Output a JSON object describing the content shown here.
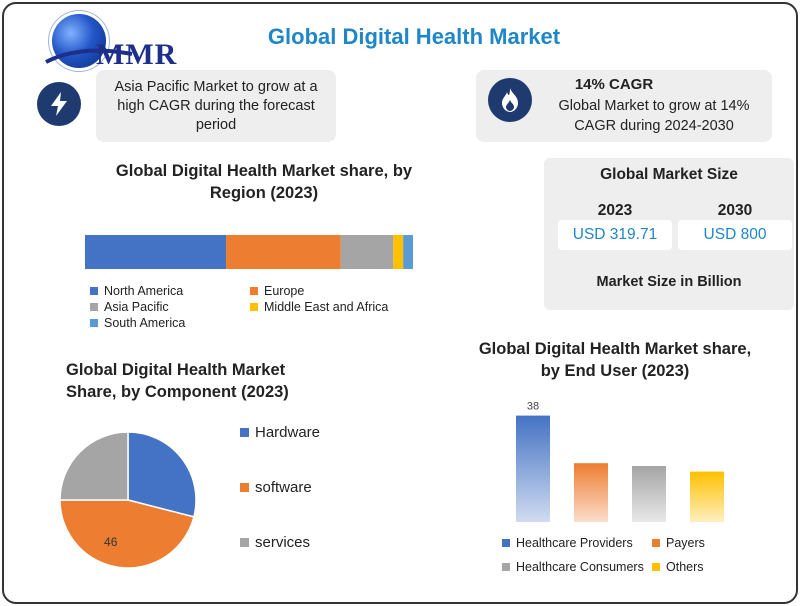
{
  "brand": {
    "logo_text": "MMR"
  },
  "title": "Global Digital Health Market",
  "callout_left": {
    "icon": "lightning-bolt-icon",
    "text": "Asia Pacific Market to grow at a high CAGR during the forecast period"
  },
  "callout_right": {
    "icon": "flame-icon",
    "title": "14% CAGR",
    "text": "Global Market to grow at 14% CAGR during 2024-2030"
  },
  "market_size": {
    "title": "Global Market Size",
    "year_a": "2023",
    "value_a": "USD 319.71",
    "year_b": "2030",
    "value_b": "USD 800",
    "note": "Market Size in Billion"
  },
  "colors": {
    "accent": "#1f86c8",
    "blue": "#4472c4",
    "orange": "#ed7d31",
    "gray": "#a5a5a5",
    "yellow": "#ffc000",
    "lightblue": "#5b9bd5"
  },
  "chart_data": [
    {
      "type": "bar",
      "orientation": "horizontal-stacked",
      "title": "Global Digital Health Market share, by Region (2023)",
      "series": [
        {
          "name": "North America",
          "values": [
            43
          ],
          "color": "#4472c4"
        },
        {
          "name": "Europe",
          "values": [
            35
          ],
          "color": "#ed7d31"
        },
        {
          "name": "Asia Pacific",
          "values": [
            16
          ],
          "color": "#a5a5a5"
        },
        {
          "name": "Middle East and Africa",
          "values": [
            3
          ],
          "color": "#ffc000"
        },
        {
          "name": "South America",
          "values": [
            3
          ],
          "color": "#5b9bd5"
        }
      ],
      "legend": "bottom"
    },
    {
      "type": "pie",
      "title": "Global Digital Health Market Share, by Component (2023)",
      "categories": [
        "Hardware",
        "software",
        "services"
      ],
      "values": [
        29,
        46,
        25
      ],
      "colors": [
        "#4472c4",
        "#ed7d31",
        "#a5a5a5"
      ],
      "data_labels": [
        "",
        "46",
        ""
      ],
      "legend": "right"
    },
    {
      "type": "bar",
      "title": "Global Digital Health Market share, by End User (2023)",
      "categories": [
        "Healthcare Providers",
        "Payers",
        "Healthcare Consumers",
        "Others"
      ],
      "values": [
        38,
        21,
        20,
        18
      ],
      "colors": [
        "#4472c4",
        "#ed7d31",
        "#a5a5a5",
        "#ffc000"
      ],
      "data_labels": [
        "38",
        "",
        "",
        ""
      ],
      "ylim": [
        0,
        40
      ],
      "legend": "bottom"
    }
  ]
}
